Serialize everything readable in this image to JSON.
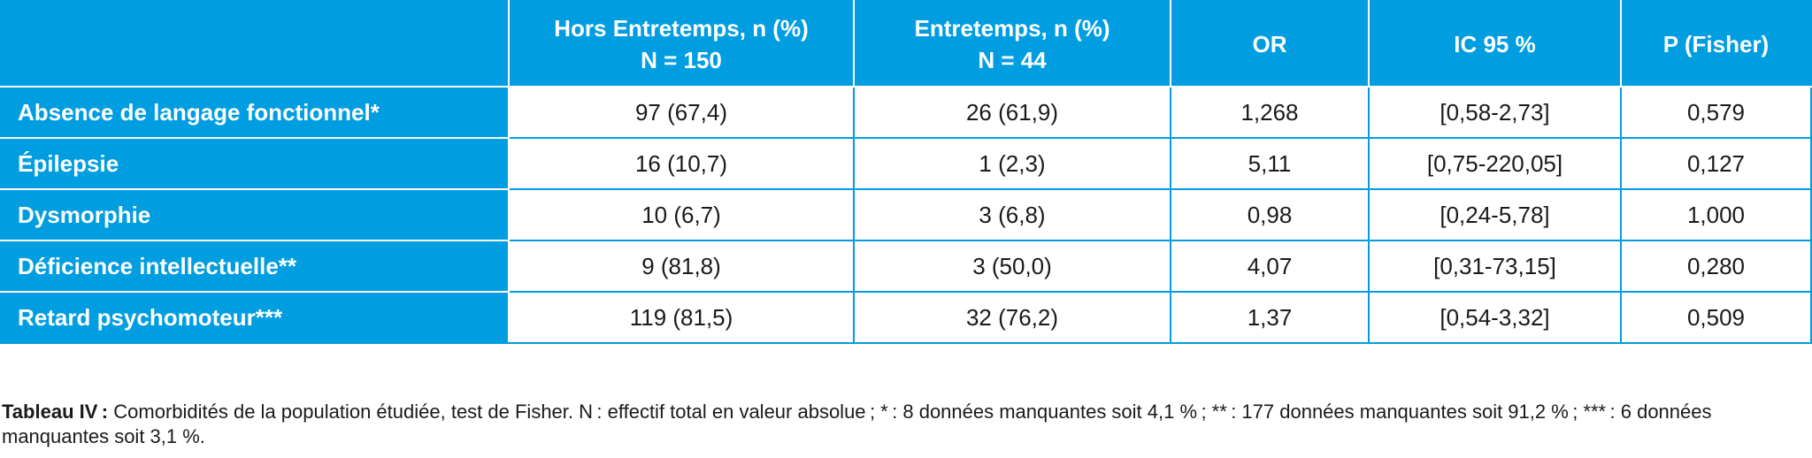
{
  "table": {
    "corner": "",
    "headers": [
      {
        "line1": "Hors Entretemps, n (%)",
        "line2": "N = 150"
      },
      {
        "line1": "Entretemps, n (%)",
        "line2": "N = 44"
      },
      {
        "line1": "OR",
        "line2": ""
      },
      {
        "line1": "IC 95 %",
        "line2": ""
      },
      {
        "line1": "P (Fisher)",
        "line2": ""
      }
    ],
    "rows": [
      {
        "label": "Absence de langage fonctionnel*",
        "cells": [
          "97 (67,4)",
          "26 (61,9)",
          "1,268",
          "[0,58-2,73]",
          "0,579"
        ]
      },
      {
        "label": "Épilepsie",
        "cells": [
          "16 (10,7)",
          "1 (2,3)",
          "5,11",
          "[0,75-220,05]",
          "0,127"
        ]
      },
      {
        "label": "Dysmorphie",
        "cells": [
          "10 (6,7)",
          "3 (6,8)",
          "0,98",
          "[0,24-5,78]",
          "1,000"
        ]
      },
      {
        "label": "Déficience intellectuelle**",
        "cells": [
          "9 (81,8)",
          "3 (50,0)",
          "4,07",
          "[0,31-73,15]",
          "0,280"
        ]
      },
      {
        "label": "Retard psychomoteur***",
        "cells": [
          "119 (81,5)",
          "32 (76,2)",
          "1,37",
          "[0,54-3,32]",
          "0,509"
        ]
      }
    ]
  },
  "caption": {
    "label": "Tableau IV :",
    "text": " Comorbidités de la population étudiée, test de Fisher. N : effectif total en valeur absolue ; * : 8 données manquantes soit 4,1 % ; ** : 177 données manquantes soit 91,2 % ; *** : 6 données manquantes soit 3,1 %."
  }
}
